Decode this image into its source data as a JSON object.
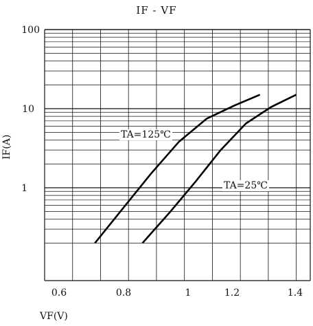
{
  "chart_data": {
    "type": "line",
    "title": "IF - VF",
    "xlabel": "VF(V)",
    "ylabel": "IF(A)",
    "xscale": "linear",
    "yscale": "log",
    "xlim": [
      0.5,
      1.45
    ],
    "ylim": [
      0.1,
      100
    ],
    "grid": true,
    "x_ticks": [
      "0.6",
      "0.8",
      "1",
      "1.2",
      "1.4"
    ],
    "y_ticks": [
      "100",
      "10",
      "1"
    ],
    "series": [
      {
        "annotation": "TA=125℃",
        "x": [
          0.68,
          0.78,
          0.88,
          0.98,
          1.08,
          1.18,
          1.27
        ],
        "y": [
          0.2,
          0.55,
          1.5,
          3.8,
          7.5,
          11,
          15
        ]
      },
      {
        "annotation": "TA=25℃",
        "x": [
          0.85,
          0.95,
          1.04,
          1.13,
          1.22,
          1.31,
          1.4
        ],
        "y": [
          0.2,
          0.5,
          1.2,
          3.0,
          6.5,
          10.5,
          15
        ]
      }
    ]
  }
}
